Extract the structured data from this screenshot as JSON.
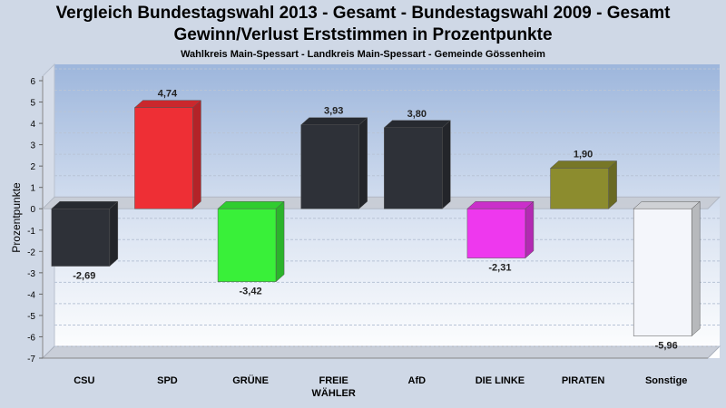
{
  "chart_data": {
    "type": "bar",
    "title": "Vergleich Bundestagswahl 2013 - Gesamt - Bundestagswahl 2009 - Gesamt",
    "title2": "Gewinn/Verlust Erststimmen in Prozentpunkte",
    "subtitle": "Wahlkreis Main-Spessart - Landkreis Main-Spessart - Gemeinde Gössenheim",
    "ylabel": "Prozentpunkte",
    "xlabel": "",
    "ylim": [
      -7,
      6
    ],
    "yticks": [
      "6",
      "5",
      "4",
      "3",
      "2",
      "1",
      "0",
      "-1",
      "-2",
      "-3",
      "-4",
      "-5",
      "-6",
      "-7"
    ],
    "grid": true,
    "categories": [
      "CSU",
      "SPD",
      "GRÜNE",
      "FREIE WÄHLER",
      "AfD",
      "DIE LINKE",
      "PIRATEN",
      "Sonstige"
    ],
    "category_lines": [
      [
        "CSU"
      ],
      [
        "SPD"
      ],
      [
        "GRÜNE"
      ],
      [
        "FREIE",
        "WÄHLER"
      ],
      [
        "AfD"
      ],
      [
        "DIE LINKE"
      ],
      [
        "PIRATEN"
      ],
      [
        "Sonstige"
      ]
    ],
    "values": [
      -2.69,
      4.74,
      -3.42,
      3.93,
      3.8,
      -2.31,
      1.9,
      -5.96
    ],
    "value_labels": [
      "-2,69",
      "4,74",
      "-3,42",
      "3,93",
      "3,80",
      "-2,31",
      "1,90",
      "-5,96"
    ],
    "colors": [
      "#2e3138",
      "#ee2f35",
      "#39f039",
      "#2e3138",
      "#2e3138",
      "#ee38ee",
      "#8c8c2e",
      "#f4f6fb"
    ]
  }
}
